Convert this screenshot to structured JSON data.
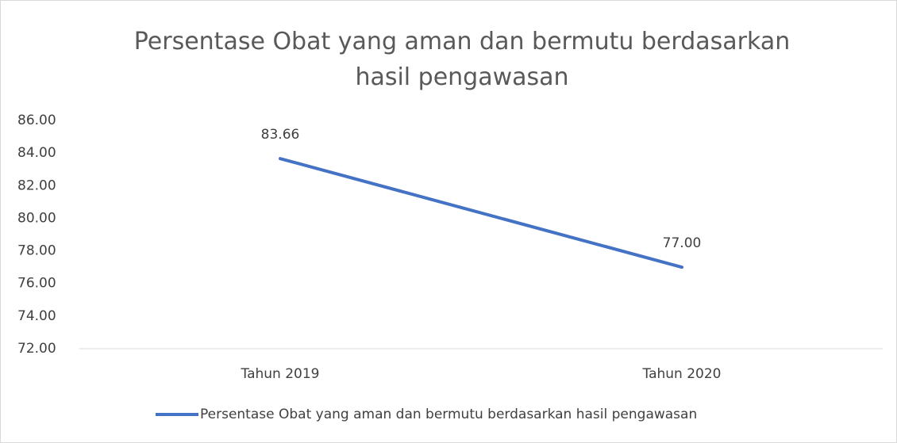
{
  "chart_data": {
    "type": "line",
    "title": "Persentase Obat yang aman dan bermutu berdasarkan hasil pengawasan",
    "categories": [
      "Tahun 2019",
      "Tahun 2020"
    ],
    "series": [
      {
        "name": "Persentase Obat yang aman dan bermutu berdasarkan hasil pengawasan",
        "color": "#4472c4",
        "values": [
          83.66,
          77
        ],
        "value_labels": [
          "83.66",
          "77.00"
        ]
      }
    ],
    "ylim": [
      72,
      86
    ],
    "yticks": [
      {
        "value": 72,
        "label": "72.00"
      },
      {
        "value": 74,
        "label": "74.00"
      },
      {
        "value": 76,
        "label": "76.00"
      },
      {
        "value": 78,
        "label": "78.00"
      },
      {
        "value": 80,
        "label": "80.00"
      },
      {
        "value": 82,
        "label": "82.00"
      },
      {
        "value": 84,
        "label": "84.00"
      },
      {
        "value": 86,
        "label": "86.00"
      }
    ],
    "grid": false,
    "legend": "bottom"
  }
}
